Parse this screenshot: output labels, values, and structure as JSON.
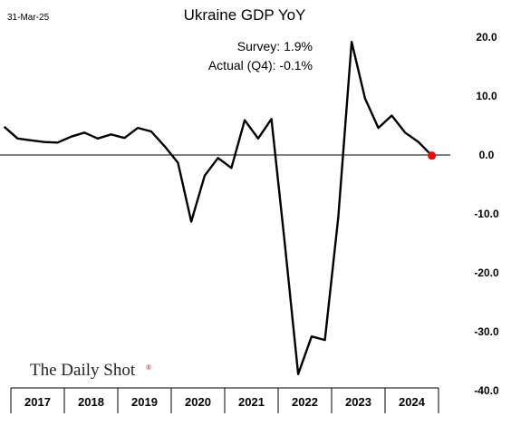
{
  "header": {
    "date": "31-Mar-25",
    "title": "Ukraine GDP YoY"
  },
  "annotations": {
    "survey": "Survey:  1.9%",
    "actual": "Actual (Q4):  -0.1%"
  },
  "branding": {
    "logo_text": "The Daily Shot",
    "registered_mark": "®"
  },
  "colors": {
    "line": "#000000",
    "last_point": "#ff0000",
    "zero_line": "#000000"
  },
  "chart_data": {
    "type": "line",
    "title": "Ukraine GDP YoY",
    "xlabel": "",
    "ylabel": "",
    "ylim": [
      -40,
      20
    ],
    "yticks": [
      20,
      10,
      0,
      -10,
      -20,
      -30,
      -40
    ],
    "ytick_labels": [
      "20.0",
      "10.0",
      "0.0",
      "-10.0",
      "-20.0",
      "-30.0",
      "-40.0"
    ],
    "y_axis_side": "right",
    "grid": false,
    "zero_line": true,
    "xlim": [
      "2016-10",
      "2025-04"
    ],
    "year_labels": [
      "2017",
      "2018",
      "2019",
      "2020",
      "2021",
      "2022",
      "2023",
      "2024"
    ],
    "series": [
      {
        "x": [
          "2016Q4",
          "2017Q1",
          "2017Q2",
          "2017Q3",
          "2017Q4",
          "2018Q1",
          "2018Q2",
          "2018Q3",
          "2018Q4",
          "2019Q1",
          "2019Q2",
          "2019Q3",
          "2019Q4",
          "2020Q1",
          "2020Q2",
          "2020Q3",
          "2020Q4",
          "2021Q1",
          "2021Q2",
          "2021Q3",
          "2021Q4",
          "2022Q1",
          "2022Q2",
          "2022Q3",
          "2022Q4",
          "2023Q1",
          "2023Q2",
          "2023Q3",
          "2023Q4",
          "2024Q1",
          "2024Q2",
          "2024Q3",
          "2024Q4"
        ],
        "values": [
          4.8,
          2.8,
          2.5,
          2.2,
          2.1,
          3.1,
          3.8,
          2.8,
          3.5,
          2.9,
          4.6,
          4.0,
          1.5,
          -1.3,
          -11.3,
          -3.5,
          -0.5,
          -2.2,
          5.9,
          2.8,
          6.1,
          -15.1,
          -37.2,
          -30.8,
          -31.4,
          -10.5,
          19.2,
          9.6,
          4.6,
          6.7,
          3.8,
          2.2,
          -0.1
        ]
      }
    ],
    "last_point_marker": true
  }
}
